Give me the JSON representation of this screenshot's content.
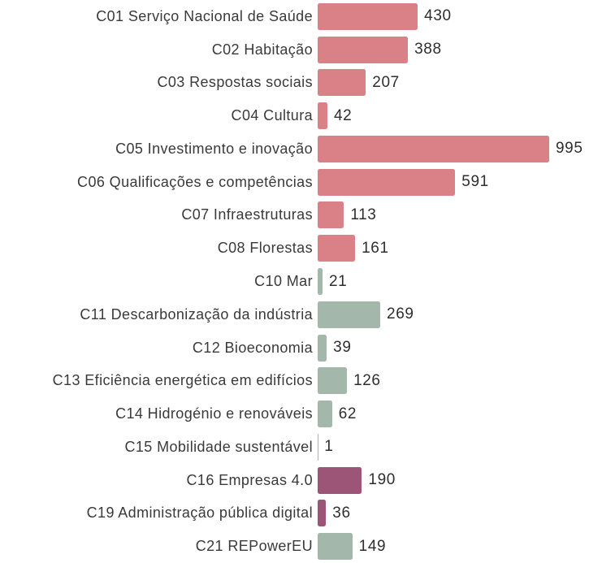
{
  "chart_data": {
    "type": "bar",
    "orientation": "horizontal",
    "title": "",
    "xlabel": "",
    "ylabel": "",
    "xlim": [
      0,
      1030
    ],
    "grid": false,
    "legend": false,
    "value_labels_shown": true,
    "categories": [
      "C01 Serviço Nacional de Saúde",
      "C02 Habitação",
      "C03 Respostas sociais",
      "C04 Cultura",
      "C05 Investimento e inovação",
      "C06 Qualificações e competências",
      "C07 Infraestruturas",
      "C08 Florestas",
      "C10 Mar",
      "C11 Descarbonização da indústria",
      "C12 Bioeconomia",
      "C13 Eficiência energética em edifícios",
      "C14 Hidrogénio e renováveis",
      "C15 Mobilidade sustentável",
      "C16 Empresas 4.0",
      "C19 Administração pública digital",
      "C21 REPowerEU"
    ],
    "values": [
      430,
      388,
      207,
      42,
      995,
      591,
      113,
      161,
      21,
      269,
      39,
      126,
      62,
      1,
      190,
      36,
      149
    ],
    "color_keys": [
      "red",
      "red",
      "red",
      "red",
      "red",
      "red",
      "red",
      "red",
      "green",
      "green",
      "green",
      "green",
      "green",
      "green",
      "purple",
      "purple",
      "green"
    ],
    "palette": {
      "red": "#d98186",
      "green": "#a4b7ab",
      "purple": "#9c5576"
    },
    "text_colors": {
      "category_label": "#3a3a3a",
      "value_label": "#2e2e2e"
    },
    "background": "#ffffff"
  }
}
